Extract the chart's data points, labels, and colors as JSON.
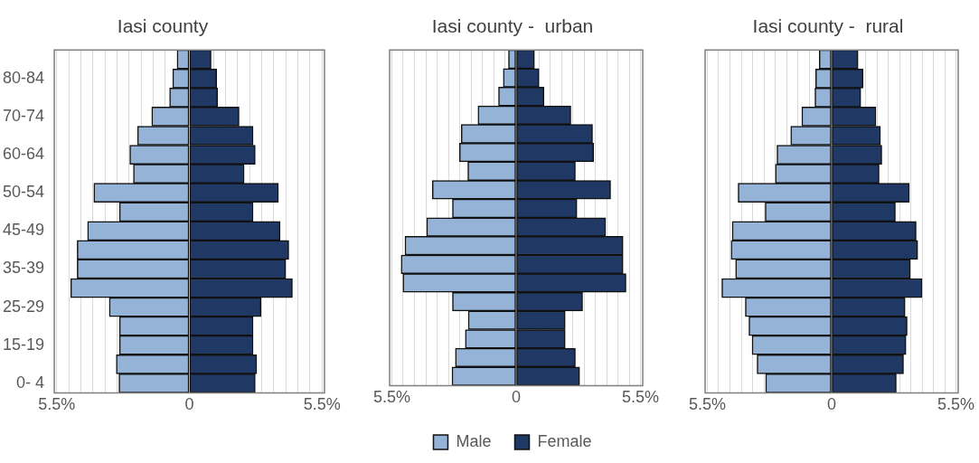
{
  "chart_data": [
    {
      "type": "bar",
      "orientation": "horizontal",
      "stacked": true,
      "title": "Iasi county",
      "categories": [
        null,
        "80-84",
        null,
        "70-74",
        null,
        "60-64",
        null,
        "50-54",
        null,
        "45-49",
        null,
        "35-39",
        null,
        "25-29",
        null,
        "15-19",
        null,
        "0- 4"
      ],
      "series": [
        {
          "color": "#95b3d7",
          "values": [
            -0.51,
            -0.69,
            -0.82,
            -1.56,
            -2.15,
            -2.47,
            -2.32,
            -3.96,
            -2.9,
            -4.22,
            -4.65,
            -4.65,
            -4.92,
            -3.32,
            -2.9,
            -2.9,
            -3.03,
            -2.92
          ]
        },
        {
          "color": "#1f3864",
          "values": [
            0.9,
            1.13,
            1.17,
            2.06,
            2.64,
            2.73,
            2.27,
            3.69,
            2.64,
            3.76,
            4.12,
            3.99,
            4.27,
            2.97,
            2.64,
            2.64,
            2.79,
            2.73
          ]
        }
      ],
      "xlim": [
        -5.6,
        5.6
      ],
      "xticks": [
        {
          "value": -5.5,
          "label": "5.5%"
        },
        {
          "value": -5,
          "label": null
        },
        {
          "value": -4.5,
          "label": null
        },
        {
          "value": -4,
          "label": null
        },
        {
          "value": -3.5,
          "label": null
        },
        {
          "value": -3,
          "label": null
        },
        {
          "value": -2.5,
          "label": null
        },
        {
          "value": -2,
          "label": null
        },
        {
          "value": -1.5,
          "label": null
        },
        {
          "value": -1,
          "label": null
        },
        {
          "value": 0,
          "label": "0"
        },
        {
          "value": 1,
          "label": null
        },
        {
          "value": 1.5,
          "label": null
        },
        {
          "value": 2,
          "label": null
        },
        {
          "value": 2.5,
          "label": null
        },
        {
          "value": 3,
          "label": null
        },
        {
          "value": 3.5,
          "label": null
        },
        {
          "value": 4,
          "label": null
        },
        {
          "value": 4.5,
          "label": null
        },
        {
          "value": 5,
          "label": null
        },
        {
          "value": 5.5,
          "label": "5.5%"
        }
      ],
      "grid": "x"
    },
    {
      "type": "bar",
      "orientation": "horizontal",
      "stacked": true,
      "title": "Iasi county -  urban",
      "categories": [
        null,
        null,
        null,
        null,
        null,
        null,
        null,
        null,
        null,
        null,
        null,
        null,
        null,
        null,
        null,
        null,
        null,
        null
      ],
      "series": [
        {
          "name": "Male",
          "color": "#95b3d7",
          "values": [
            -0.34,
            -0.57,
            -0.78,
            -1.69,
            -2.43,
            -2.51,
            -2.14,
            -3.71,
            -2.82,
            -3.96,
            -4.92,
            -5.09,
            -5.01,
            -2.82,
            -2.12,
            -2.25,
            -2.69,
            -2.84
          ]
        },
        {
          "name": "Female",
          "color": "#1f3864",
          "values": [
            0.81,
            1.01,
            1.23,
            2.42,
            3.38,
            3.43,
            2.62,
            4.18,
            2.69,
            3.96,
            4.73,
            4.73,
            4.86,
            2.94,
            2.17,
            2.17,
            2.62,
            2.81
          ]
        }
      ],
      "xlim": [
        -5.6,
        5.6
      ],
      "xticks": [
        {
          "value": -5.5,
          "label": "5.5%"
        },
        {
          "value": -5,
          "label": null
        },
        {
          "value": -4.5,
          "label": null
        },
        {
          "value": -4,
          "label": null
        },
        {
          "value": -3.5,
          "label": null
        },
        {
          "value": -3,
          "label": null
        },
        {
          "value": -2.5,
          "label": null
        },
        {
          "value": -2,
          "label": null
        },
        {
          "value": -1.5,
          "label": null
        },
        {
          "value": -1,
          "label": null
        },
        {
          "value": -0.5,
          "label": null
        },
        {
          "value": 0,
          "label": "0"
        },
        {
          "value": 0.5,
          "label": null
        },
        {
          "value": 1,
          "label": null
        },
        {
          "value": 1.5,
          "label": null
        },
        {
          "value": 2,
          "label": null
        },
        {
          "value": 2.5,
          "label": null
        },
        {
          "value": 3,
          "label": null
        },
        {
          "value": 3.5,
          "label": null
        },
        {
          "value": 4,
          "label": null
        },
        {
          "value": 4.5,
          "label": null
        },
        {
          "value": 5,
          "label": null
        },
        {
          "value": 5.5,
          "label": "5.5%"
        }
      ],
      "grid": "x",
      "legend": "bottom",
      "tick_labels": "x"
    },
    {
      "type": "bar",
      "orientation": "horizontal",
      "stacked": true,
      "title": "Iasi county -  rural",
      "categories": [
        null,
        null,
        null,
        null,
        null,
        null,
        null,
        null,
        null,
        null,
        null,
        null,
        null,
        null,
        null,
        null,
        null,
        null
      ],
      "series": [
        {
          "color": "#95b3d7",
          "values": [
            -0.55,
            -0.71,
            -0.74,
            -1.32,
            -1.81,
            -2.42,
            -2.49,
            -4.14,
            -2.94,
            -4.4,
            -4.45,
            -4.25,
            -4.86,
            -3.82,
            -3.66,
            -3.52,
            -3.3,
            -2.92
          ]
        },
        {
          "color": "#1f3864",
          "values": [
            1.17,
            1.39,
            1.29,
            1.96,
            2.16,
            2.22,
            2.1,
            3.44,
            2.82,
            3.74,
            3.81,
            3.48,
            4.0,
            3.25,
            3.34,
            3.29,
            3.18,
            2.86
          ]
        }
      ],
      "xlim": [
        -5.6,
        5.6
      ],
      "xticks": [
        {
          "value": -5.5,
          "label": "5.5%"
        },
        {
          "value": -5,
          "label": null
        },
        {
          "value": -4.5,
          "label": null
        },
        {
          "value": -4,
          "label": null
        },
        {
          "value": -3.5,
          "label": null
        },
        {
          "value": -3,
          "label": null
        },
        {
          "value": -2.5,
          "label": null
        },
        {
          "value": -2,
          "label": null
        },
        {
          "value": -1.5,
          "label": null
        },
        {
          "value": -1,
          "label": null
        },
        {
          "value": 0,
          "label": "0"
        },
        {
          "value": 1.5,
          "label": null
        },
        {
          "value": 2,
          "label": null
        },
        {
          "value": 2.5,
          "label": null
        },
        {
          "value": 3,
          "label": null
        },
        {
          "value": 3.5,
          "label": null
        },
        {
          "value": 4,
          "label": null
        },
        {
          "value": 4.5,
          "label": null
        },
        {
          "value": 5,
          "label": null
        },
        {
          "value": 5.5,
          "label": "5.5%"
        }
      ],
      "grid": "x",
      "tick_labels": "x"
    }
  ]
}
